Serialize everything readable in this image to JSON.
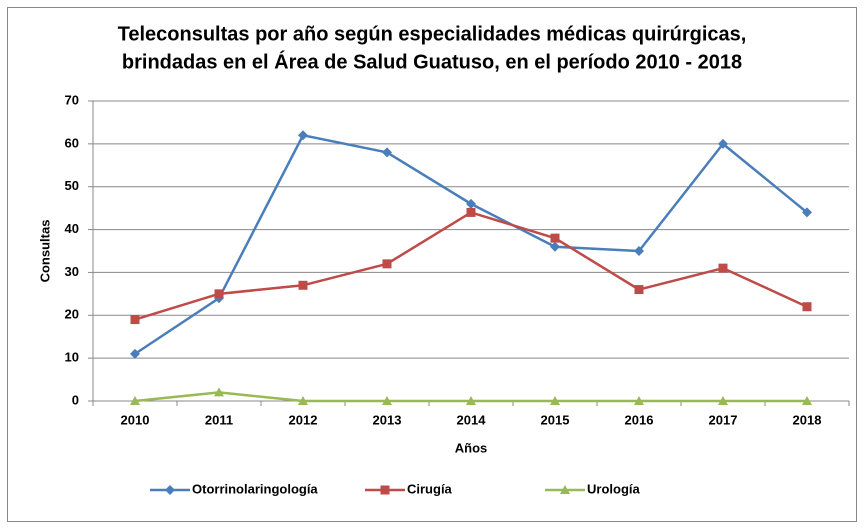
{
  "chart_data": {
    "type": "line",
    "title": [
      "Teleconsultas por año según especialidades médicas quirúrgicas,",
      "brindadas en el Área de Salud Guatuso, en el período 2010 - 2018"
    ],
    "x_label": "Años",
    "y_label": "Consultas",
    "categories": [
      "2010",
      "2011",
      "2012",
      "2013",
      "2014",
      "2015",
      "2016",
      "2017",
      "2018"
    ],
    "series": [
      {
        "name": "Otorrinolaringología",
        "color": "#4a7ebb",
        "marker": "diamond",
        "values": [
          11,
          24,
          62,
          58,
          46,
          36,
          35,
          60,
          44
        ]
      },
      {
        "name": "Cirugía",
        "color": "#be4b48",
        "marker": "square",
        "values": [
          19,
          25,
          27,
          32,
          44,
          38,
          26,
          31,
          22
        ]
      },
      {
        "name": "Urología",
        "color": "#98b954",
        "marker": "triangle",
        "values": [
          0,
          2,
          0,
          0,
          0,
          0,
          0,
          0,
          0
        ]
      }
    ],
    "ylim": [
      0,
      70
    ],
    "yticks": [
      0,
      10,
      20,
      30,
      40,
      50,
      60,
      70
    ],
    "grid": true,
    "legend": "bottom"
  }
}
